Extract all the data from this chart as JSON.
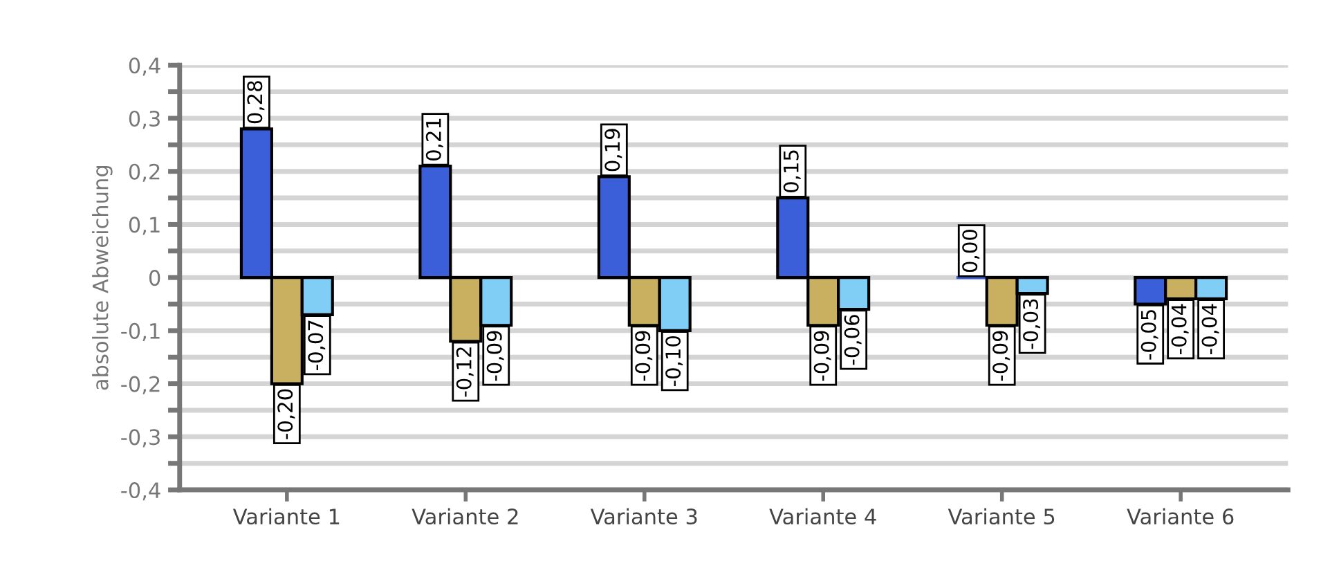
{
  "chart_data": {
    "type": "bar",
    "ylabel": "absolute Abweichung",
    "categories": [
      "Variante 1",
      "Variante 2",
      "Variante 3",
      "Variante 4",
      "Variante 5",
      "Variante 6"
    ],
    "series": [
      {
        "color": "#3a5fd9",
        "values": [
          0.28,
          0.21,
          0.19,
          0.15,
          0.0,
          -0.05
        ],
        "value_labels": [
          "0,28",
          "0,21",
          "0,19",
          "0,15",
          "0,00",
          "-0,05"
        ]
      },
      {
        "color": "#c8b060",
        "values": [
          -0.2,
          -0.12,
          -0.09,
          -0.09,
          -0.09,
          -0.04
        ],
        "value_labels": [
          "-0,20",
          "-0,12",
          "-0,09",
          "-0,09",
          "-0,09",
          "-0,04"
        ]
      },
      {
        "color": "#80cdf6",
        "values": [
          -0.07,
          -0.09,
          -0.1,
          -0.06,
          -0.03,
          -0.04
        ],
        "value_labels": [
          "-0,07",
          "-0,09",
          "-0,10",
          "-0,06",
          "-0,03",
          "-0,04"
        ]
      }
    ],
    "ylim": [
      -0.4,
      0.4
    ],
    "yticks": [
      {
        "value": -0.4,
        "label": "-0,4"
      },
      {
        "value": -0.35,
        "label": null
      },
      {
        "value": -0.3,
        "label": "-0,3"
      },
      {
        "value": -0.25,
        "label": null
      },
      {
        "value": -0.2,
        "label": "-0,2"
      },
      {
        "value": -0.15,
        "label": null
      },
      {
        "value": -0.1,
        "label": "-0,1"
      },
      {
        "value": -0.05,
        "label": null
      },
      0,
      {
        "value": 0.05,
        "label": null
      },
      {
        "value": 0.1,
        "label": "0,1"
      },
      {
        "value": 0.15,
        "label": null
      },
      {
        "value": 0.2,
        "label": "0,2"
      },
      {
        "value": 0.25,
        "label": null
      },
      {
        "value": 0.3,
        "label": "0,3"
      },
      {
        "value": 0.35,
        "label": null
      },
      {
        "value": 0.4,
        "label": "0,4"
      }
    ],
    "grid": "y",
    "legend": false
  }
}
